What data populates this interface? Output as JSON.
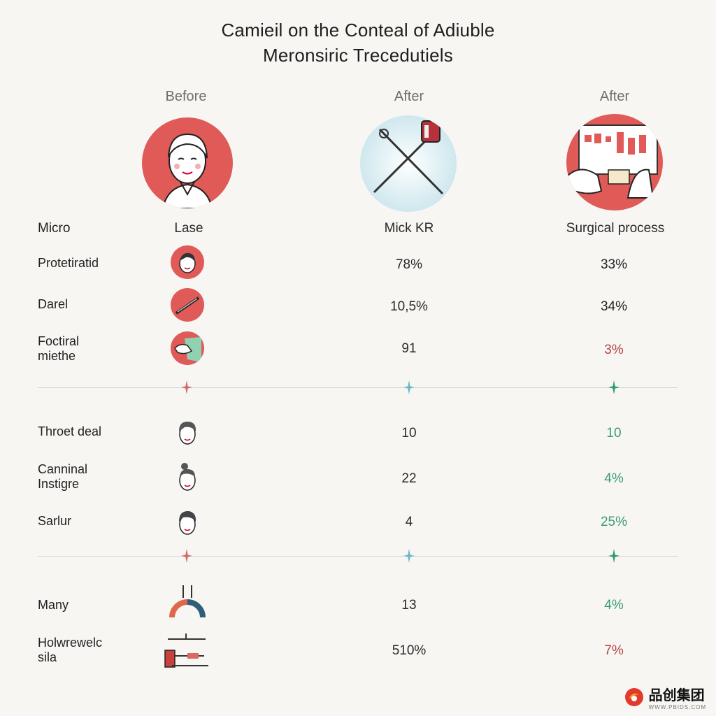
{
  "title_line1": "Camieil on the Conteal of Adiuble",
  "title_line2": "Meronsiric Trecedutiels",
  "columns": [
    {
      "header": "Before",
      "sublabel": "Lase"
    },
    {
      "header": "After",
      "sublabel": "Mick KR"
    },
    {
      "header": "After",
      "sublabel": "Surgical process"
    }
  ],
  "row_header": "Micro",
  "groups": [
    {
      "rows": [
        {
          "label": "Protetiratid",
          "col2": "78%",
          "col3": "33%",
          "col3_color": "#222222",
          "icon": "woman-face-icon"
        },
        {
          "label": "Darel",
          "col2": "10,5%",
          "col3": "34%",
          "col3_color": "#222222",
          "icon": "laser-pen-icon"
        },
        {
          "label": "Foctiral\nmiethe",
          "col2": "91",
          "col3": "3%",
          "col3_color": "#b5443f",
          "icon": "hand-tool-icon"
        }
      ]
    },
    {
      "rows": [
        {
          "label": "Throet deal",
          "col2": "10",
          "col3": "10",
          "col3_color": "#3c9a78",
          "icon": "man-face-icon"
        },
        {
          "label": "Canninal\nInstigre",
          "col2": "22",
          "col3": "4%",
          "col3_color": "#3c9a78",
          "icon": "woman-bun-face-icon"
        },
        {
          "label": "Sarlur",
          "col2": "4",
          "col3": "25%",
          "col3_color": "#3c9a78",
          "icon": "man-face-icon"
        }
      ]
    },
    {
      "rows": [
        {
          "label": "Many",
          "col2": "13",
          "col3": "4%",
          "col3_color": "#3c9a78",
          "icon": "arc-tool-icon"
        },
        {
          "label": "Holwrewelc\nsila",
          "col2": "510%",
          "col3": "7%",
          "col3_color": "#b5443f",
          "icon": "surgical-tools-icon"
        }
      ]
    }
  ],
  "watermark": {
    "text": "品创集团",
    "sub": "WWW.PBIDS.COM"
  }
}
